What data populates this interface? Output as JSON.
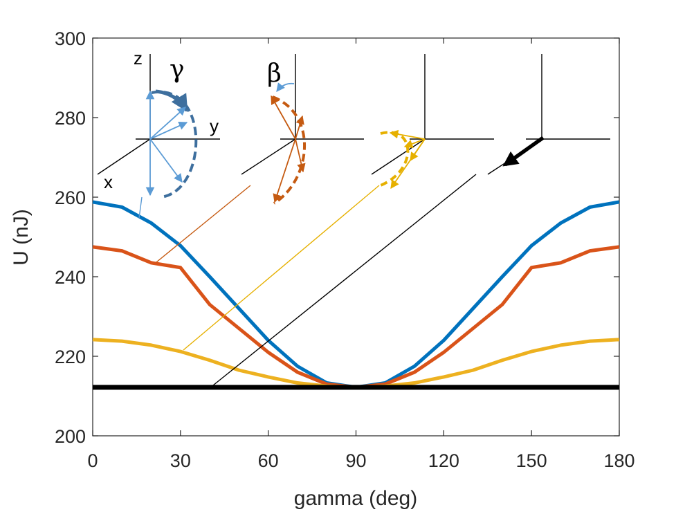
{
  "chart_data": {
    "type": "line",
    "title": "",
    "xlabel": "gamma (deg)",
    "ylabel": "U (nJ)",
    "xlim": [
      0,
      180
    ],
    "ylim": [
      200,
      300
    ],
    "xticks": [
      0,
      30,
      60,
      90,
      120,
      150,
      180
    ],
    "yticks": [
      200,
      220,
      240,
      260,
      280,
      300
    ],
    "x": [
      0,
      10,
      20,
      30,
      40,
      50,
      60,
      70,
      80,
      90,
      100,
      110,
      120,
      130,
      140,
      150,
      160,
      170,
      180
    ],
    "series": [
      {
        "color": "#0072BD",
        "values": [
          258.8,
          257.5,
          253.5,
          247.8,
          240.0,
          232.0,
          224.0,
          217.5,
          213.3,
          212.2,
          213.3,
          217.5,
          224.0,
          232.0,
          240.0,
          247.8,
          253.5,
          257.5,
          258.8
        ]
      },
      {
        "color": "#D95319",
        "values": [
          247.5,
          246.5,
          243.5,
          242.3,
          233.0,
          227.0,
          221.0,
          216.0,
          213.0,
          212.2,
          213.0,
          216.0,
          221.0,
          227.0,
          233.0,
          242.3,
          243.5,
          246.5,
          247.5
        ]
      },
      {
        "color": "#EDB120",
        "values": [
          224.2,
          223.8,
          222.8,
          221.2,
          219.0,
          216.5,
          214.8,
          213.3,
          212.5,
          212.2,
          212.5,
          213.3,
          214.8,
          216.5,
          219.0,
          221.2,
          222.8,
          223.8,
          224.2
        ]
      },
      {
        "color": "#000000",
        "values": [
          212.2,
          212.2,
          212.2,
          212.2,
          212.2,
          212.2,
          212.2,
          212.2,
          212.2,
          212.2,
          212.2,
          212.2,
          212.2,
          212.2,
          212.2,
          212.2,
          212.2,
          212.2,
          212.2
        ]
      }
    ],
    "grid": false,
    "inset_labels": {
      "z": "z",
      "y": "y",
      "x": "x",
      "gamma": "γ",
      "beta": "β"
    }
  }
}
